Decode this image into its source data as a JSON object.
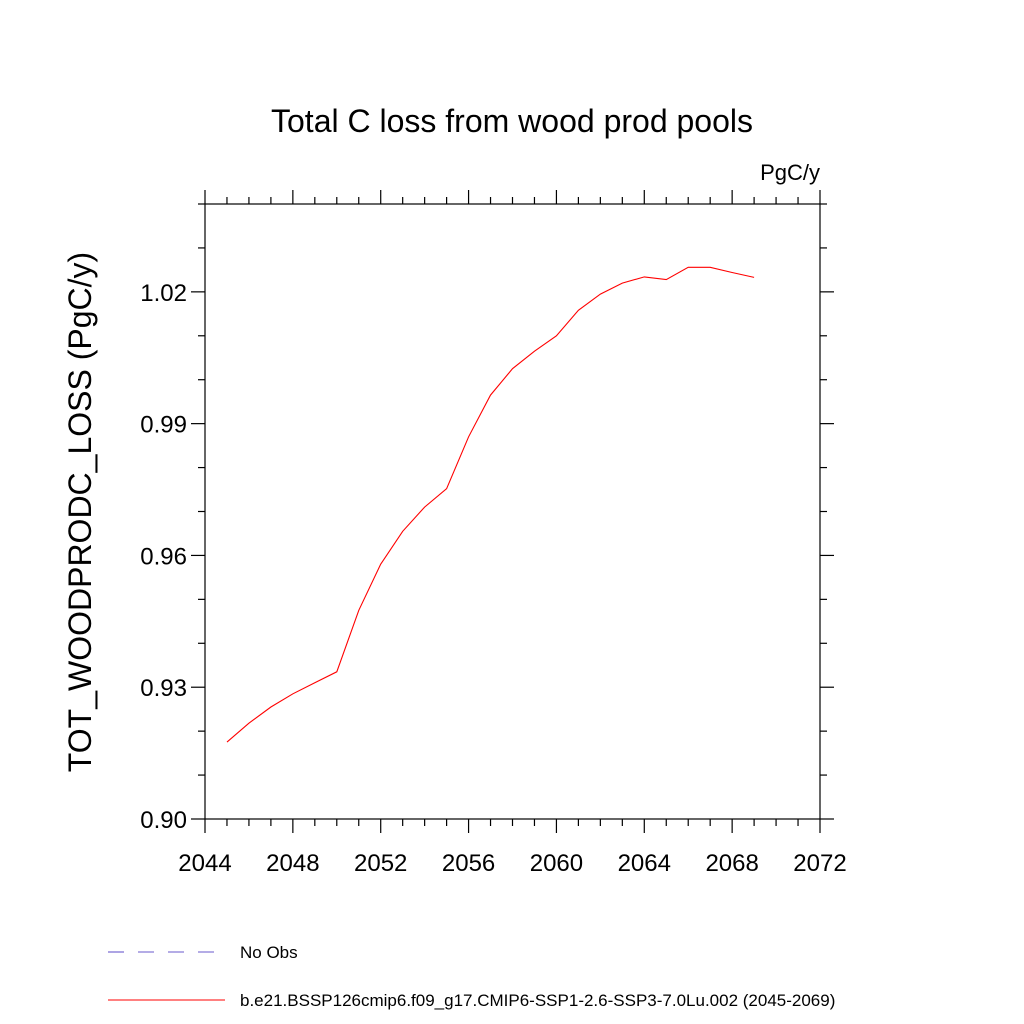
{
  "chart_data": {
    "type": "line",
    "title": "Total C loss from wood prod pools",
    "units_label": "PgC/y",
    "xlabel": "",
    "ylabel": "TOT_WOODPRODC_LOSS  (PgC/y)",
    "xlim": [
      2044,
      2072
    ],
    "ylim": [
      0.9,
      1.04
    ],
    "x_ticks": [
      2044,
      2048,
      2052,
      2056,
      2060,
      2064,
      2068,
      2072
    ],
    "x_tick_labels": [
      "2044",
      "2048",
      "2052",
      "2056",
      "2060",
      "2064",
      "2068",
      "2072"
    ],
    "y_ticks": [
      0.9,
      0.93,
      0.96,
      0.99,
      1.02
    ],
    "y_tick_labels": [
      "0.90",
      "0.93",
      "0.96",
      "0.99",
      "1.02"
    ],
    "grid": false,
    "series": [
      {
        "name": "No Obs",
        "color": "#6a5acd",
        "style": "dashed",
        "x": [],
        "y": []
      },
      {
        "name": "b.e21.BSSP126cmip6.f09_g17.CMIP6-SSP1-2.6-SSP3-7.0Lu.002 (2045-2069)",
        "color": "#ff0000",
        "style": "solid",
        "x": [
          2045,
          2046,
          2047,
          2048,
          2049,
          2050,
          2051,
          2052,
          2053,
          2054,
          2055,
          2056,
          2057,
          2058,
          2059,
          2060,
          2061,
          2062,
          2063,
          2064,
          2065,
          2066,
          2067,
          2068,
          2069
        ],
        "y": [
          0.9175,
          0.9218,
          0.9255,
          0.9285,
          0.931,
          0.9335,
          0.9475,
          0.958,
          0.9655,
          0.971,
          0.9752,
          0.987,
          0.9965,
          1.0025,
          1.0065,
          1.01,
          1.0158,
          1.0195,
          1.022,
          1.0234,
          1.0228,
          1.0256,
          1.0256,
          1.0244,
          1.0233
        ]
      }
    ],
    "legend_position": "bottom"
  }
}
